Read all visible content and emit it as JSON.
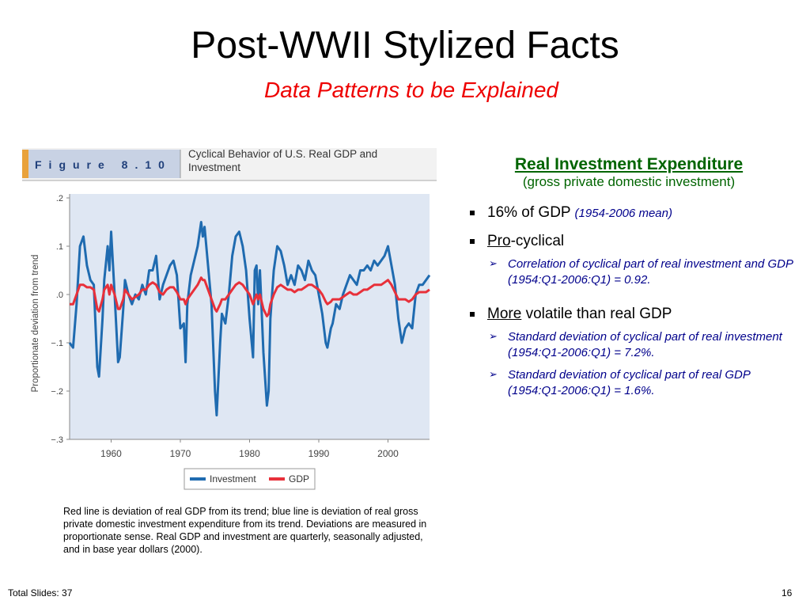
{
  "slide": {
    "title": "Post-WWII Stylized Facts",
    "subtitle": "Data Patterns to be Explained",
    "figure": {
      "number": "Figure 8.10",
      "caption": "Cyclical Behavior of U.S. Real GDP and Investment"
    },
    "note": "Red line is deviation of real GDP from its trend; blue line is deviation of real gross private domestic investment expenditure from its trend.  Deviations are measured in proportionate sense.  Real GDP and investment are quarterly, seasonally adjusted, and in base year dollars (2000).",
    "heading": "Real Investment Expenditure",
    "heading_sub": "(gross private domestic investment)",
    "bullets": [
      {
        "text": "16% of GDP",
        "note": "(1954-2006 mean)"
      },
      {
        "underlined": "Pro",
        "text": "-cyclical",
        "subs": [
          "Correlation of cyclical part of real investment and GDP (1954:Q1-2006:Q1) = 0.92."
        ]
      },
      {
        "underlined": "More",
        "text": "volatile than real GDP",
        "subs": [
          "Standard deviation of cyclical part of real investment (1954:Q1-2006:Q1) = 7.2%.",
          "Standard deviation of cyclical part of real GDP (1954:Q1-2006:Q1) = 1.6%."
        ]
      }
    ],
    "footer_left": "Total Slides: 37",
    "footer_right": "16"
  },
  "chart_data": {
    "type": "line",
    "y_label": "Proportionate deviation from trend",
    "xlim": [
      1954,
      2006
    ],
    "xticks": [
      1960,
      1970,
      1980,
      1990,
      2000
    ],
    "ylim": [
      -0.3,
      0.2
    ],
    "yticks": [
      {
        "value": 0.2,
        "label": ".2"
      },
      {
        "value": 0.1,
        "label": ".1"
      },
      {
        "value": 0,
        "label": ".0"
      },
      {
        "value": -0.1,
        "label": "−.1"
      },
      {
        "value": -0.2,
        "label": "−.2"
      },
      {
        "value": -0.3,
        "label": "−.3"
      }
    ],
    "x": [
      1954,
      1954.5,
      1955,
      1955.5,
      1956,
      1956.5,
      1957,
      1957.5,
      1958,
      1958.25,
      1958.75,
      1959,
      1959.5,
      1959.75,
      1960,
      1960.5,
      1961,
      1961.25,
      1961.75,
      1962,
      1962.5,
      1963,
      1963.5,
      1964,
      1964.5,
      1965,
      1965.5,
      1966,
      1966.5,
      1967,
      1967.5,
      1968,
      1968.5,
      1969,
      1969.5,
      1970,
      1970.5,
      1970.75,
      1971,
      1971.5,
      1972,
      1972.5,
      1973,
      1973.25,
      1973.5,
      1974,
      1974.5,
      1975,
      1975.25,
      1975.75,
      1976,
      1976.5,
      1977,
      1977.5,
      1978,
      1978.5,
      1979,
      1979.5,
      1980,
      1980.5,
      1980.75,
      1981,
      1981.25,
      1981.5,
      1982,
      1982.5,
      1982.75,
      1983,
      1983.5,
      1984,
      1984.5,
      1985,
      1985.5,
      1986,
      1986.5,
      1987,
      1987.5,
      1988,
      1988.5,
      1989,
      1989.5,
      1990,
      1990.5,
      1991,
      1991.25,
      1991.75,
      1992,
      1992.5,
      1993,
      1993.5,
      1994,
      1994.5,
      1995,
      1995.5,
      1996,
      1996.5,
      1997,
      1997.5,
      1998,
      1998.5,
      1999,
      1999.5,
      2000,
      2000.5,
      2001,
      2001.5,
      2002,
      2002.5,
      2003,
      2003.5,
      2004,
      2004.5,
      2005,
      2005.5,
      2006
    ],
    "series": [
      {
        "name": "Investment",
        "color": "#1f6bb0",
        "values": [
          -0.1,
          -0.11,
          -0.02,
          0.1,
          0.12,
          0.06,
          0.03,
          0.02,
          -0.15,
          -0.17,
          -0.05,
          0.03,
          0.1,
          0.05,
          0.13,
          0,
          -0.14,
          -0.13,
          -0.03,
          0.03,
          0,
          -0.02,
          0,
          -0.01,
          0.02,
          0,
          0.05,
          0.05,
          0.08,
          -0.01,
          0.02,
          0.04,
          0.06,
          0.07,
          0.04,
          -0.07,
          -0.06,
          -0.14,
          -0.02,
          0.04,
          0.07,
          0.1,
          0.15,
          0.12,
          0.14,
          0.06,
          -0.02,
          -0.2,
          -0.25,
          -0.1,
          -0.04,
          -0.06,
          0,
          0.08,
          0.12,
          0.13,
          0.1,
          0.05,
          -0.05,
          -0.13,
          0.05,
          0.06,
          -0.02,
          0.05,
          -0.12,
          -0.23,
          -0.2,
          -0.05,
          0.05,
          0.1,
          0.09,
          0.06,
          0.02,
          0.04,
          0.02,
          0.06,
          0.05,
          0.03,
          0.07,
          0.05,
          0.04,
          0,
          -0.04,
          -0.1,
          -0.11,
          -0.07,
          -0.06,
          -0.02,
          -0.03,
          0,
          0.02,
          0.04,
          0.03,
          0.02,
          0.05,
          0.05,
          0.06,
          0.05,
          0.07,
          0.06,
          0.07,
          0.08,
          0.1,
          0.06,
          0.02,
          -0.05,
          -0.1,
          -0.07,
          -0.06,
          -0.07,
          0,
          0.02,
          0.02,
          0.03,
          0.04
        ]
      },
      {
        "name": "GDP",
        "color": "#e8303a",
        "values": [
          -0.02,
          -0.02,
          0,
          0.02,
          0.02,
          0.015,
          0.015,
          0.01,
          -0.03,
          -0.035,
          -0.01,
          0.01,
          0.02,
          0,
          0.02,
          0,
          -0.03,
          -0.03,
          -0.01,
          0.01,
          0,
          -0.01,
          -0.005,
          0,
          0.01,
          0.01,
          0.02,
          0.025,
          0.02,
          0.005,
          0,
          0.01,
          0.015,
          0.015,
          0.005,
          -0.01,
          -0.01,
          -0.02,
          -0.01,
          0,
          0.01,
          0.02,
          0.035,
          0.03,
          0.03,
          0.01,
          -0.01,
          -0.03,
          -0.035,
          -0.02,
          -0.01,
          -0.01,
          0,
          0.01,
          0.02,
          0.025,
          0.02,
          0.01,
          0,
          -0.02,
          -0.01,
          0,
          -0.01,
          0,
          -0.03,
          -0.045,
          -0.04,
          -0.02,
          0,
          0.015,
          0.02,
          0.015,
          0.01,
          0.01,
          0.005,
          0.01,
          0.01,
          0.015,
          0.02,
          0.02,
          0.015,
          0.01,
          0,
          -0.015,
          -0.02,
          -0.015,
          -0.01,
          -0.01,
          -0.01,
          -0.005,
          0,
          0.005,
          0,
          0,
          0.005,
          0.01,
          0.01,
          0.015,
          0.02,
          0.02,
          0.02,
          0.025,
          0.03,
          0.02,
          0.005,
          -0.01,
          -0.01,
          -0.01,
          -0.015,
          -0.01,
          0,
          0.005,
          0.005,
          0.005,
          0.01
        ]
      }
    ]
  }
}
